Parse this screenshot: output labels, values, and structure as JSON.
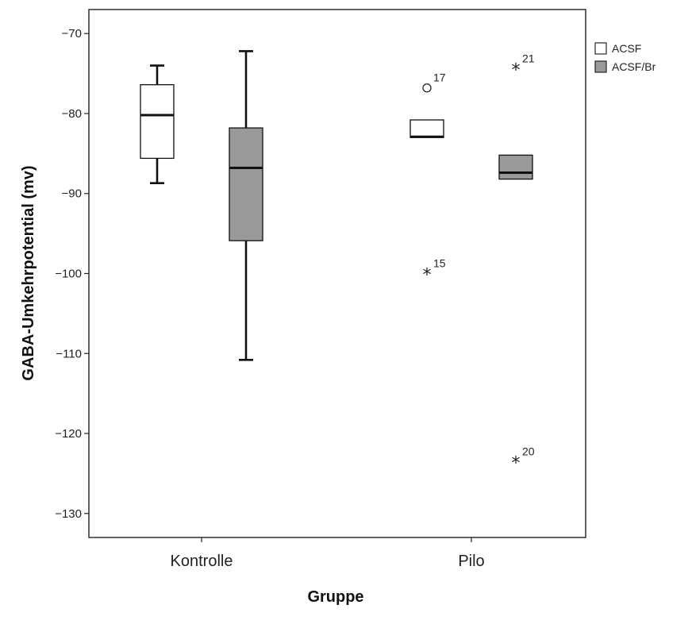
{
  "chart_data": {
    "type": "boxplot",
    "xlabel": "Gruppe",
    "ylabel": "GABA-Umkehrpotential (mv)",
    "ylim": [
      -133,
      -67
    ],
    "yticks": [
      -70,
      -80,
      -90,
      -100,
      -110,
      -120,
      -130
    ],
    "categories": [
      "Kontrolle",
      "Pilo"
    ],
    "grid": false,
    "legend_position": "right",
    "series": [
      {
        "name": "ACSF",
        "color": "#ffffff",
        "boxes": [
          {
            "category": "Kontrolle",
            "whisker_low": -88.7,
            "q1": -85.6,
            "median": -80.2,
            "q3": -76.4,
            "whisker_high": -74.0,
            "outliers": []
          },
          {
            "category": "Pilo",
            "whisker_low": -83.0,
            "q1": -83.0,
            "median": -82.9,
            "q3": -80.8,
            "whisker_high": -80.8,
            "outliers": [
              {
                "label": "17",
                "value": -76.8,
                "marker": "circle"
              },
              {
                "label": "15",
                "value": -100.0,
                "marker": "star"
              }
            ]
          }
        ]
      },
      {
        "name": "ACSF/Br",
        "color": "#999999",
        "boxes": [
          {
            "category": "Kontrolle",
            "whisker_low": -110.8,
            "q1": -95.9,
            "median": -86.8,
            "q3": -81.8,
            "whisker_high": -72.2,
            "outliers": []
          },
          {
            "category": "Pilo",
            "whisker_low": -88.2,
            "q1": -88.2,
            "median": -87.4,
            "q3": -85.2,
            "whisker_high": -85.2,
            "outliers": [
              {
                "label": "21",
                "value": -74.4,
                "marker": "star"
              },
              {
                "label": "20",
                "value": -123.5,
                "marker": "star"
              }
            ]
          }
        ]
      }
    ]
  }
}
